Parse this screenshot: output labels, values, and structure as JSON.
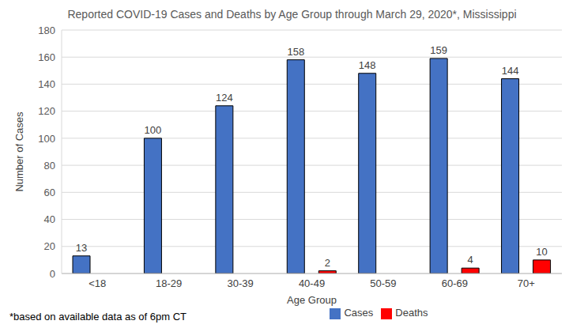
{
  "chart_data": {
    "type": "bar",
    "title": "Reported COVID-19 Cases and Deaths by Age Group through March 29, 2020*, Mississippi",
    "x_label": "Age Group",
    "y_label": "Number of Cases",
    "categories": [
      "<18",
      "18-29",
      "30-39",
      "40-49",
      "50-59",
      "60-69",
      "70+"
    ],
    "series": [
      {
        "name": "Cases",
        "color": "#4472c4",
        "values": [
          13,
          100,
          124,
          158,
          148,
          159,
          144
        ]
      },
      {
        "name": "Deaths",
        "color": "#ff0000",
        "values": [
          null,
          null,
          null,
          2,
          null,
          4,
          10
        ]
      }
    ],
    "ylim": [
      0,
      180
    ],
    "yticks": [
      0,
      20,
      40,
      60,
      80,
      100,
      120,
      140,
      160,
      180
    ],
    "grid": true,
    "legend": "bottom",
    "data_labels": true,
    "annotations": [
      "*based on available data as of 6pm CT"
    ]
  }
}
